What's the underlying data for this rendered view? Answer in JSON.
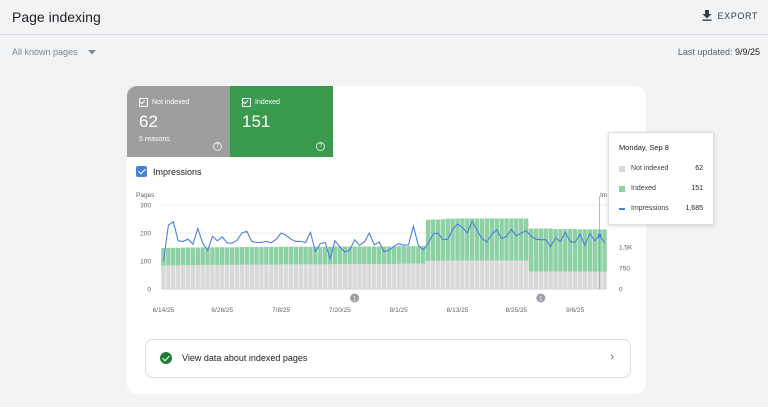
{
  "header": {
    "title": "Page indexing",
    "export_label": "EXPORT"
  },
  "filter": {
    "selected": "All known pages"
  },
  "last_updated": {
    "label": "Last updated:",
    "value": "9/9/25"
  },
  "stats": {
    "not_indexed": {
      "label": "Not indexed",
      "value": "62",
      "sub": "5 reasons"
    },
    "indexed": {
      "label": "Indexed",
      "value": "151"
    }
  },
  "impressions_toggle": {
    "label": "Impressions",
    "checked": true
  },
  "link_row": {
    "label": "View data about indexed pages"
  },
  "tooltip": {
    "title": "Monday, Sep 8",
    "rows": [
      {
        "label": "Not indexed",
        "value": "62",
        "color": "#d9d9d9"
      },
      {
        "label": "Indexed",
        "value": "151",
        "color": "#8ed1a5"
      },
      {
        "label": "Impressions",
        "value": "1,685",
        "color": "#4a80d8"
      }
    ]
  },
  "colors": {
    "not_indexed": "#d9d9d9",
    "indexed": "#8ed1a5",
    "impressions": "#4a80d8"
  },
  "chart_data": {
    "type": "bar",
    "left_axis_label": "Pages",
    "right_axis_label": "Im",
    "ylim": [
      0,
      300
    ],
    "y_ticks": [
      "300",
      "200",
      "100",
      "0"
    ],
    "right_ticks": [
      "1.5K",
      "750",
      "0"
    ],
    "right_ylim": [
      0,
      3000
    ],
    "x_ticks": [
      "6/14/25",
      "6/26/25",
      "7/8/25",
      "7/20/25",
      "8/1/25",
      "8/13/25",
      "8/25/25",
      "9/6/25"
    ],
    "annotations": [
      "1",
      "1"
    ],
    "series": [
      {
        "name": "Not indexed",
        "values": [
          83,
          84,
          84,
          84,
          85,
          85,
          85,
          85,
          86,
          86,
          86,
          86,
          86,
          86,
          86,
          86,
          87,
          87,
          87,
          87,
          87,
          87,
          87,
          87,
          88,
          88,
          88,
          88,
          88,
          88,
          88,
          88,
          88,
          88,
          88,
          89,
          89,
          89,
          89,
          89,
          89,
          89,
          89,
          89,
          89,
          89,
          89,
          89,
          90,
          90,
          90,
          90,
          90,
          90,
          100,
          101,
          101,
          101,
          102,
          102,
          102,
          102,
          102,
          102,
          102,
          102,
          102,
          102,
          102,
          102,
          102,
          102,
          102,
          102,
          102,
          62,
          62,
          62,
          62,
          62,
          62,
          62,
          62,
          62,
          62,
          62,
          62,
          62,
          62,
          62,
          62
        ]
      },
      {
        "name": "Indexed",
        "values": [
          63,
          63,
          63,
          63,
          63,
          63,
          63,
          63,
          63,
          63,
          63,
          63,
          63,
          63,
          63,
          63,
          63,
          63,
          63,
          63,
          63,
          63,
          63,
          63,
          63,
          63,
          63,
          63,
          63,
          63,
          63,
          63,
          63,
          63,
          63,
          63,
          63,
          63,
          63,
          63,
          63,
          63,
          63,
          63,
          63,
          63,
          63,
          63,
          63,
          63,
          63,
          63,
          63,
          63,
          147,
          147,
          147,
          148,
          149,
          149,
          150,
          150,
          150,
          150,
          150,
          150,
          150,
          150,
          150,
          150,
          150,
          150,
          150,
          150,
          150,
          154,
          154,
          154,
          154,
          154,
          152,
          152,
          152,
          152,
          152,
          151,
          151,
          151,
          151,
          151,
          151
        ]
      },
      {
        "name": "Impressions",
        "values": [
          1000,
          2280,
          2400,
          1720,
          1700,
          1780,
          1600,
          2160,
          1640,
          1380,
          1880,
          1720,
          1860,
          1640,
          1640,
          1740,
          2000,
          2060,
          1700,
          1660,
          1660,
          1700,
          1650,
          1780,
          2000,
          1920,
          1780,
          1700,
          1700,
          1660,
          2020,
          1340,
          1620,
          1660,
          1080,
          1720,
          1500,
          1320,
          1380,
          1760,
          1560,
          1680,
          2000,
          1580,
          1680,
          1340,
          1380,
          1520,
          1620,
          1560,
          1580,
          2240,
          1560,
          1400,
          1620,
          1960,
          2000,
          1760,
          1780,
          2120,
          2320,
          2200,
          2000,
          2420,
          2100,
          1800,
          1680,
          1960,
          2120,
          1800,
          1880,
          2120,
          1900,
          2000,
          2080,
          1900,
          1780,
          1760,
          1760,
          1520,
          1820,
          1700,
          2020,
          1700,
          1660,
          1960,
          1560,
          1980,
          1720,
          1900,
          1660
        ]
      }
    ]
  }
}
